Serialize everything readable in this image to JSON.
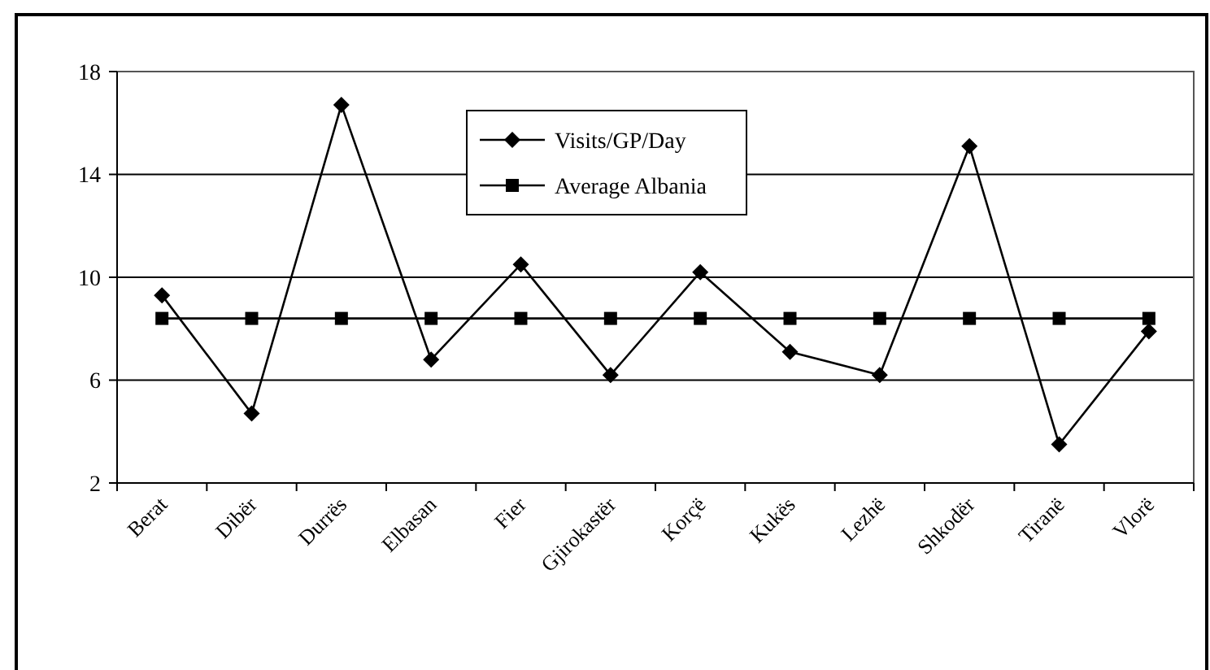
{
  "chart_data": {
    "type": "line",
    "categories": [
      "Berat",
      "Dibër",
      "Durrës",
      "Elbasan",
      "Fier",
      "Gjirokastër",
      "Korçë",
      "Kukës",
      "Lezhë",
      "Shkodër",
      "Tiranë",
      "Vlorë"
    ],
    "series": [
      {
        "name": "Visits/GP/Day",
        "color": "#000000",
        "marker": "diamond",
        "values": [
          9.3,
          4.7,
          16.7,
          6.8,
          10.5,
          6.2,
          10.2,
          7.1,
          6.2,
          15.1,
          3.5,
          7.9
        ]
      },
      {
        "name": "Average Albania",
        "color": "#000000",
        "marker": "square",
        "values": [
          8.4,
          8.4,
          8.4,
          8.4,
          8.4,
          8.4,
          8.4,
          8.4,
          8.4,
          8.4,
          8.4,
          8.4
        ]
      }
    ],
    "ylim": [
      2,
      18
    ],
    "yticks": [
      2,
      6,
      10,
      14,
      18
    ],
    "grid": "y",
    "legend": "top"
  }
}
